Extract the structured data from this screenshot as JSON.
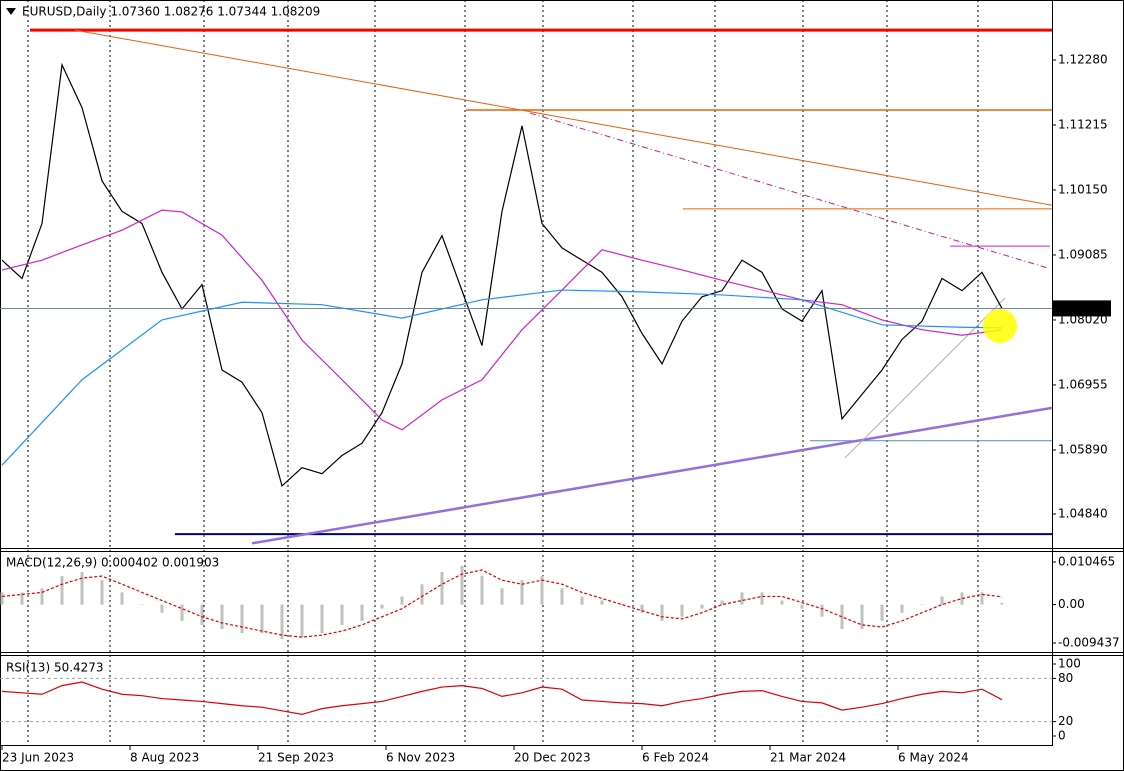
{
  "chart_data": [
    {
      "type": "price",
      "title": "EURUSD,Daily 1.07360 1.08276 1.07344 1.08209",
      "xlim": [
        -0.5,
        262.5
      ],
      "ylim": [
        1.04283,
        1.13263
      ],
      "yticks": [
        {
          "value": 1.1228,
          "label": "1.12280"
        },
        1.11215,
        {
          "value": 1.1015,
          "label": "1.10150"
        },
        1.09085,
        {
          "value": 1.0802,
          "label": "1.08020"
        },
        1.06955,
        {
          "value": 1.0589,
          "label": "1.05890"
        },
        {
          "value": 1.0484,
          "label": "1.04840"
        }
      ],
      "last_price": 1.08209,
      "last_price_color": "#000000",
      "series": [
        {
          "color": "#000000",
          "style": "solid",
          "x": [
            0,
            5,
            10,
            15,
            20,
            25,
            30,
            35,
            40,
            45,
            50,
            55,
            60,
            65,
            70,
            75,
            80,
            85,
            90,
            95,
            100,
            105,
            110,
            115,
            120,
            125,
            130,
            135,
            140,
            145,
            150,
            155,
            160,
            165,
            170,
            175,
            180,
            185,
            190,
            195,
            200,
            205,
            210,
            215,
            220,
            225,
            230,
            235,
            240,
            245,
            250
          ],
          "values": [
            1.09,
            1.087,
            1.096,
            1.122,
            1.115,
            1.103,
            1.098,
            1.096,
            1.088,
            1.082,
            1.086,
            1.072,
            1.07,
            1.065,
            1.053,
            1.056,
            1.055,
            1.058,
            1.06,
            1.065,
            1.073,
            1.088,
            1.094,
            1.085,
            1.076,
            1.098,
            1.112,
            1.096,
            1.092,
            1.09,
            1.088,
            1.084,
            1.078,
            1.073,
            1.08,
            1.084,
            1.085,
            1.09,
            1.088,
            1.082,
            1.08,
            1.085,
            1.064,
            1.068,
            1.072,
            1.077,
            1.08,
            1.087,
            1.085,
            1.088,
            1.08209
          ]
        },
        {
          "color": "#d020d0",
          "style": "solid",
          "x": [
            0,
            10,
            20,
            30,
            40,
            45,
            55,
            65,
            75,
            85,
            95,
            100,
            110,
            120,
            130,
            140,
            150,
            160,
            170,
            180,
            190,
            200,
            210,
            220,
            230,
            240,
            250
          ],
          "values": [
            1.0884,
            1.09,
            1.0925,
            1.0949,
            1.0982,
            1.0979,
            1.0941,
            1.0867,
            1.0769,
            1.0704,
            1.0638,
            1.0622,
            1.0671,
            1.0704,
            1.0786,
            1.0851,
            1.0917,
            1.09,
            1.0884,
            1.0867,
            1.0851,
            1.0835,
            1.0827,
            1.0802,
            1.0786,
            1.0777,
            1.0786
          ]
        },
        {
          "color": "#1e90ff",
          "style": "solid",
          "x": [
            0,
            20,
            40,
            60,
            80,
            100,
            120,
            140,
            160,
            180,
            200,
            220,
            240,
            250
          ],
          "values": [
            1.0564,
            1.0704,
            1.0802,
            1.0831,
            1.0827,
            1.0805,
            1.0835,
            1.0851,
            1.0848,
            1.0843,
            1.0835,
            1.0794,
            1.079,
            1.0789
          ]
        }
      ],
      "lines": [
        {
          "color": "#ff0000",
          "width": 3,
          "style": "solid",
          "x": [
            7,
            262.5
          ],
          "y": [
            1.1277,
            1.1277
          ]
        },
        {
          "color": "#e8600a",
          "width": 1.5,
          "style": "solid",
          "x": [
            116,
            262.5
          ],
          "y": [
            1.1146,
            1.1146
          ]
        },
        {
          "color": "#e8600a",
          "width": 1,
          "style": "solid",
          "x": [
            170.25,
            262.5
          ],
          "y": [
            1.0984,
            1.0984
          ]
        },
        {
          "color": "#d020d0",
          "width": 1,
          "style": "solid",
          "x": [
            237,
            262
          ],
          "y": [
            1.0923,
            1.0923
          ]
        },
        {
          "color": "#4a90b0",
          "width": 1,
          "style": "solid",
          "x": [
            202,
            262.5
          ],
          "y": [
            1.0604,
            1.0604
          ]
        },
        {
          "color": "#000080",
          "width": 2,
          "style": "solid",
          "x": [
            43.25,
            262.5
          ],
          "y": [
            1.0451,
            1.0451
          ]
        },
        {
          "color": "#e8600a",
          "width": 1,
          "style": "solid",
          "x": [
            18.25,
            262.5
          ],
          "y": [
            1.1277,
            1.099
          ]
        },
        {
          "color": "#c0208a",
          "width": 1,
          "style": "dashed",
          "x": [
            132,
            261.5
          ],
          "y": [
            1.1141,
            1.0887
          ]
        },
        {
          "color": "#9370db",
          "width": 2.5,
          "style": "solid",
          "x": [
            62.5,
            262.5
          ],
          "y": [
            1.0436,
            1.0658
          ]
        },
        {
          "color": "#b0b0b0",
          "width": 1,
          "style": "solid",
          "x": [
            210.75,
            250.75
          ],
          "y": [
            1.0576,
            1.0838
          ]
        }
      ]
    },
    {
      "type": "macd",
      "title": "MACD(12,26,9) 0.000402 0.001903",
      "xlim": [
        -0.5,
        262.5
      ],
      "ylim": [
        -0.011403,
        0.013168
      ],
      "yticks": [
        0.010465,
        {
          "value": 0,
          "label": "0.00"
        },
        -0.009437
      ],
      "series": [
        {
          "color": "#c0c0c0",
          "style": "histogram",
          "x": [
            0,
            5,
            10,
            15,
            20,
            25,
            30,
            35,
            40,
            45,
            50,
            55,
            60,
            65,
            70,
            75,
            80,
            85,
            90,
            95,
            100,
            105,
            110,
            115,
            120,
            125,
            130,
            135,
            140,
            145,
            150,
            155,
            160,
            165,
            170,
            175,
            180,
            185,
            190,
            195,
            200,
            205,
            210,
            215,
            220,
            225,
            230,
            235,
            240,
            245,
            250
          ],
          "values": [
            0.003,
            0.003,
            0.004,
            0.007,
            0.008,
            0.006,
            0.003,
            0,
            -0.002,
            -0.004,
            -0.005,
            -0.006,
            -0.007,
            -0.007,
            -0.0085,
            -0.008,
            -0.007,
            -0.005,
            -0.004,
            -0.001,
            0.002,
            0.005,
            0.008,
            0.0095,
            0.007,
            0.004,
            0.006,
            0.007,
            0.004,
            0.002,
            0.001,
            0,
            -0.002,
            -0.004,
            -0.003,
            -0.001,
            0.001,
            0.003,
            0.003,
            0.001,
            -0.001,
            -0.003,
            -0.006,
            -0.006,
            -0.004,
            -0.002,
            0,
            0.002,
            0.003,
            0.003,
            0.000402
          ]
        },
        {
          "color": "#e00000",
          "style": "dashed",
          "x": [
            0,
            5,
            10,
            15,
            20,
            25,
            30,
            35,
            40,
            45,
            50,
            55,
            60,
            65,
            70,
            75,
            80,
            85,
            90,
            95,
            100,
            105,
            110,
            115,
            120,
            125,
            130,
            135,
            140,
            145,
            150,
            155,
            160,
            165,
            170,
            175,
            180,
            185,
            190,
            195,
            200,
            205,
            210,
            215,
            220,
            225,
            230,
            235,
            240,
            245,
            250
          ],
          "values": [
            0.002,
            0.0025,
            0.003,
            0.005,
            0.0065,
            0.007,
            0.005,
            0.003,
            0.001,
            -0.001,
            -0.003,
            -0.0045,
            -0.0055,
            -0.0065,
            -0.0075,
            -0.008,
            -0.0075,
            -0.0065,
            -0.005,
            -0.003,
            -0.001,
            0.002,
            0.005,
            0.0075,
            0.0085,
            0.006,
            0.005,
            0.006,
            0.005,
            0.003,
            0.0015,
            0,
            -0.0015,
            -0.003,
            -0.0035,
            -0.002,
            0,
            0.001,
            0.002,
            0.002,
            0.0005,
            -0.001,
            -0.003,
            -0.005,
            -0.0055,
            -0.004,
            -0.002,
            0,
            0.0015,
            0.0025,
            0.001903
          ]
        }
      ]
    },
    {
      "type": "rsi",
      "title": "RSI(13) 50.4273",
      "xlim": [
        -0.5,
        262.5
      ],
      "ylim": [
        -12.5,
        111.11
      ],
      "yticks": [
        100,
        80,
        20,
        0
      ],
      "levels": [
        80,
        20
      ],
      "xticks": [
        {
          "value": 0,
          "label": "23 Jun 2023"
        },
        {
          "value": 32,
          "label": "8 Aug 2023"
        },
        {
          "value": 64,
          "label": "21 Sep 2023"
        },
        {
          "value": 96,
          "label": "6 Nov 2023"
        },
        {
          "value": 128,
          "label": "20 Dec 2023"
        },
        {
          "value": 160,
          "label": "6 Feb 2024"
        },
        {
          "value": 192,
          "label": "21 Mar 2024"
        },
        {
          "value": 224,
          "label": "6 May 2024"
        }
      ],
      "series": [
        {
          "color": "#e00000",
          "style": "solid",
          "x": [
            0,
            5,
            10,
            15,
            20,
            25,
            30,
            35,
            40,
            45,
            50,
            55,
            60,
            65,
            70,
            75,
            80,
            85,
            90,
            95,
            100,
            105,
            110,
            115,
            120,
            125,
            130,
            135,
            140,
            145,
            150,
            155,
            160,
            165,
            170,
            175,
            180,
            185,
            190,
            195,
            200,
            205,
            210,
            215,
            220,
            225,
            230,
            235,
            240,
            245,
            250
          ],
          "values": [
            62,
            60,
            58,
            70,
            75,
            65,
            58,
            56,
            52,
            50,
            48,
            45,
            42,
            40,
            35,
            30,
            38,
            42,
            45,
            48,
            55,
            62,
            68,
            70,
            66,
            55,
            60,
            68,
            65,
            50,
            48,
            46,
            45,
            42,
            48,
            52,
            58,
            62,
            63,
            55,
            48,
            46,
            36,
            40,
            45,
            52,
            58,
            62,
            60,
            65,
            50.4273
          ]
        }
      ]
    }
  ]
}
